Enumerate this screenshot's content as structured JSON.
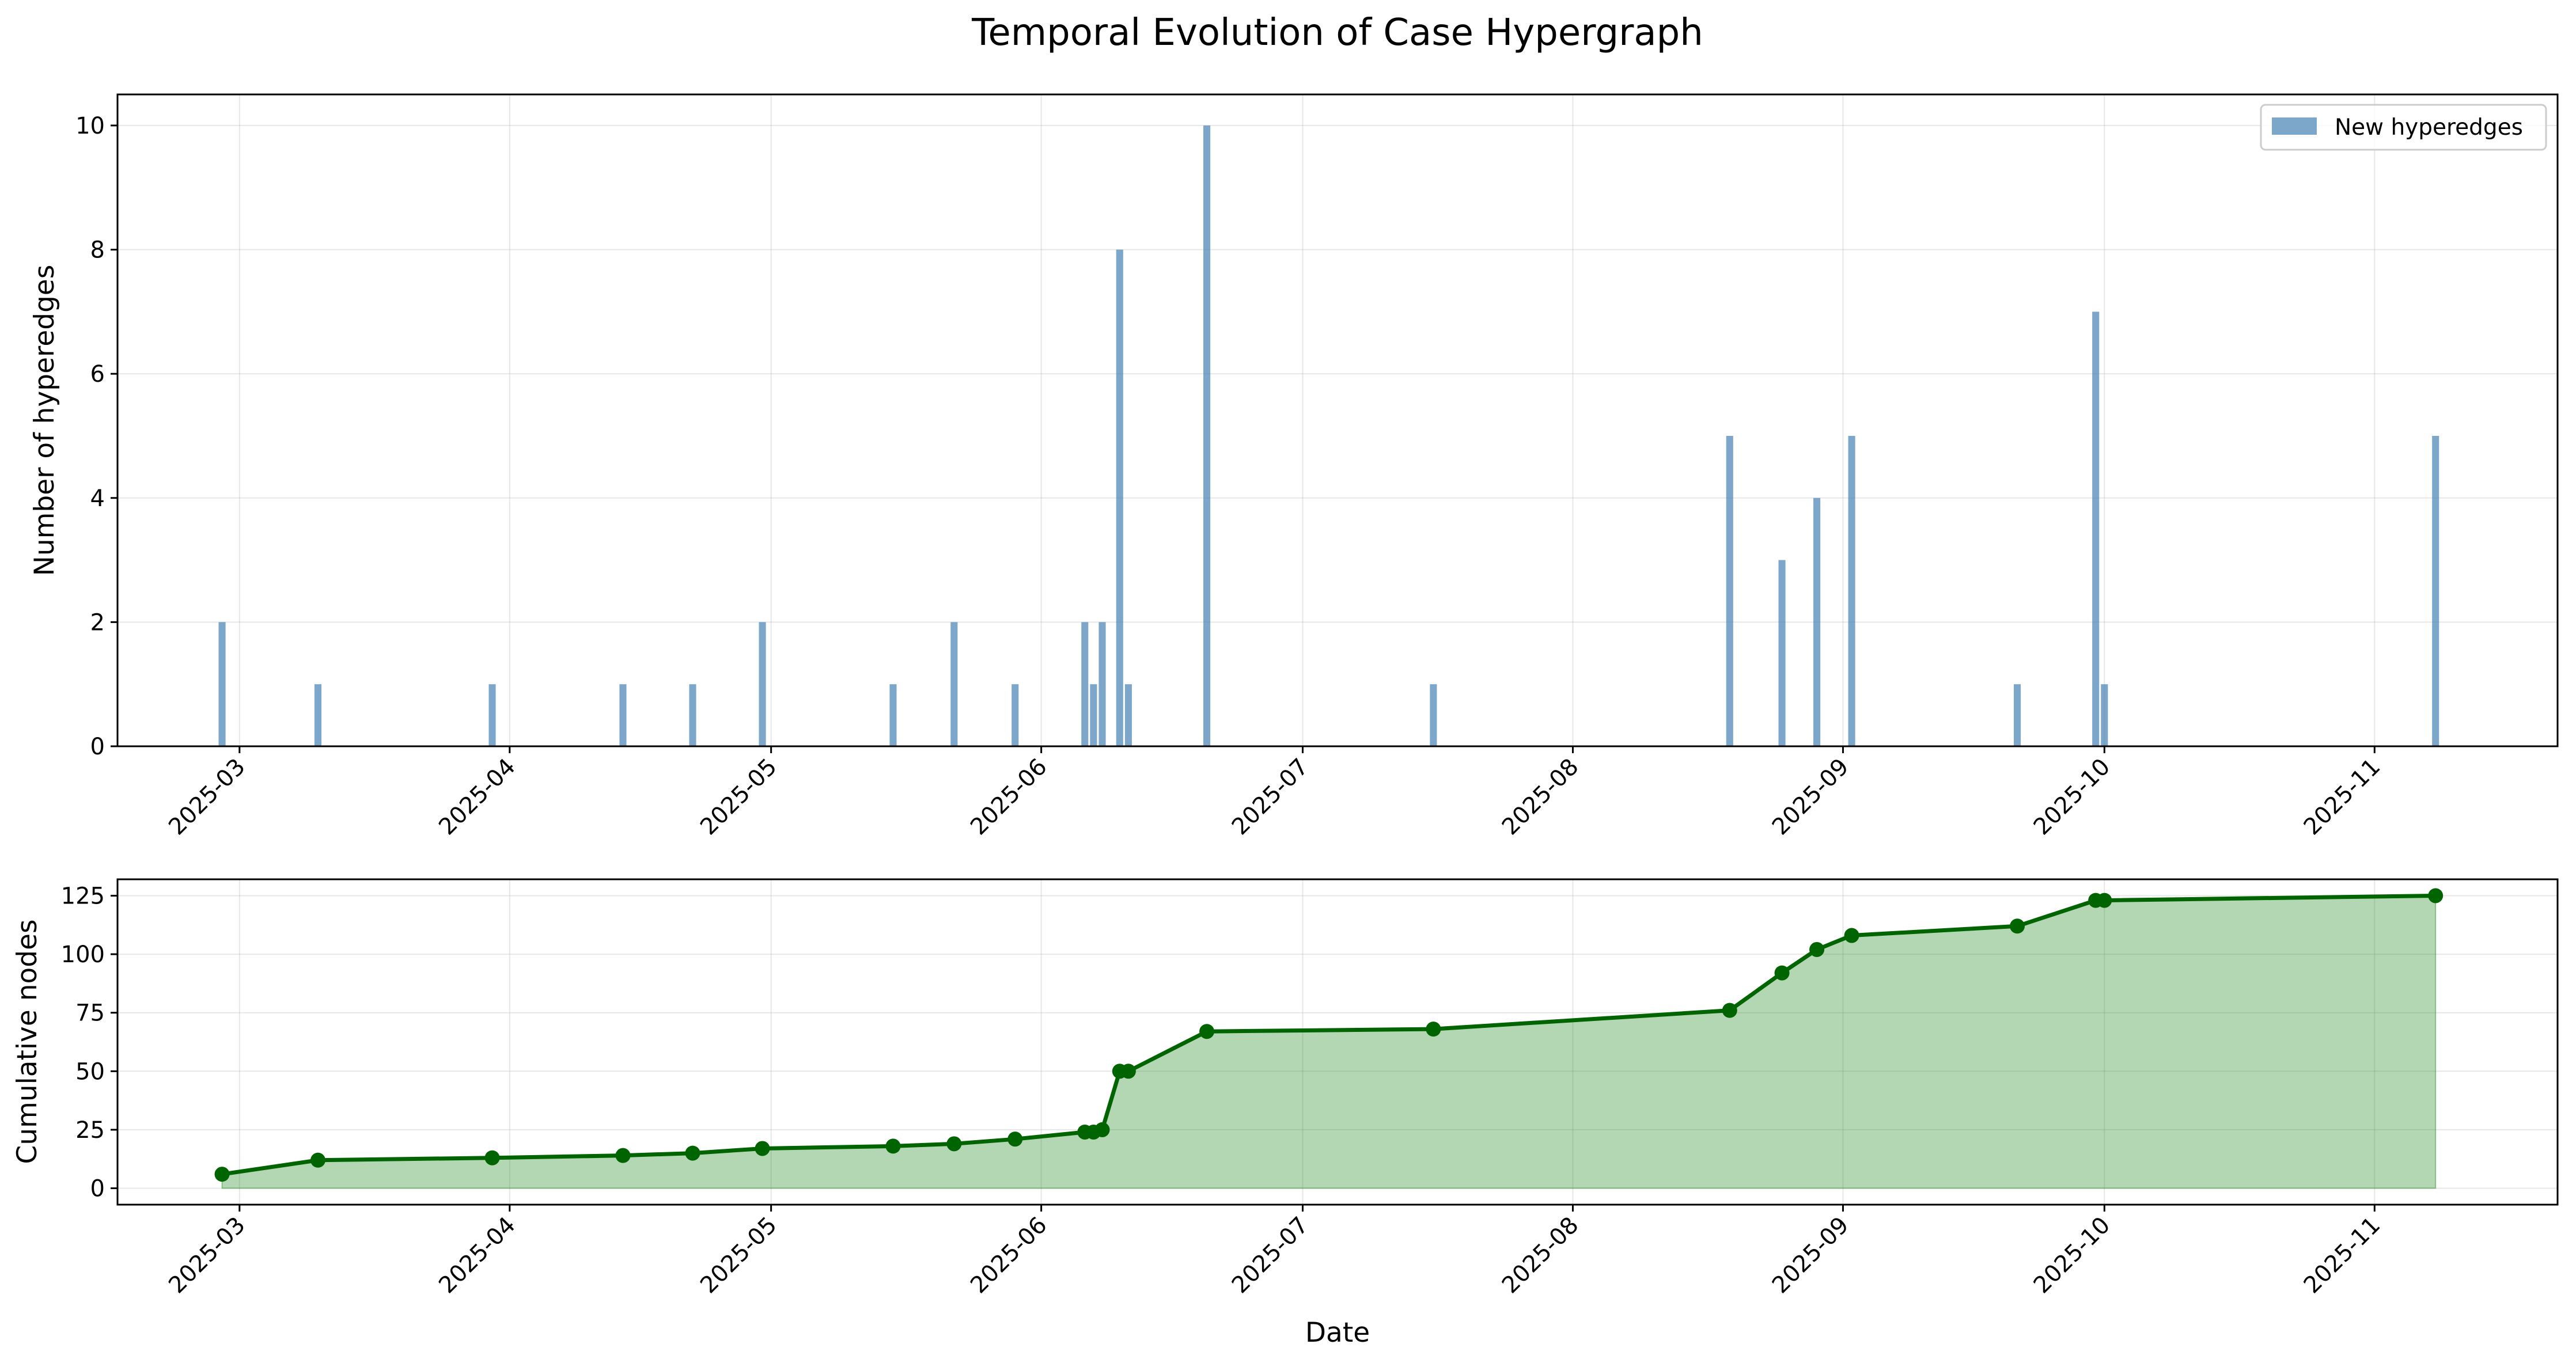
{
  "title": "Temporal Evolution of Case Hypergraph",
  "colors": {
    "bar": "#4682b4",
    "line": "#006400",
    "fill": "#228b22"
  },
  "chart_data": [
    {
      "type": "bar",
      "ylabel": "Number of hyperedges",
      "xlabel": "",
      "ylim": [
        0,
        10.5
      ],
      "yticks": [
        0,
        2,
        4,
        6,
        8,
        10
      ],
      "xlim": [
        "2025-02-15",
        "2025-11-22"
      ],
      "xticks": [
        "2025-03-01",
        "2025-04-01",
        "2025-05-01",
        "2025-06-01",
        "2025-07-01",
        "2025-08-01",
        "2025-09-01",
        "2025-10-01",
        "2025-11-01"
      ],
      "xtick_labels": [
        "2025-03",
        "2025-04",
        "2025-05",
        "2025-06",
        "2025-07",
        "2025-08",
        "2025-09",
        "2025-10",
        "2025-11"
      ],
      "grid": true,
      "legend": {
        "position": "top-right",
        "entries": [
          "New hyperedges"
        ]
      },
      "series": [
        {
          "name": "New hyperedges",
          "x": [
            "2025-02-27",
            "2025-03-10",
            "2025-03-30",
            "2025-04-14",
            "2025-04-22",
            "2025-04-30",
            "2025-05-15",
            "2025-05-22",
            "2025-05-29",
            "2025-06-06",
            "2025-06-07",
            "2025-06-08",
            "2025-06-10",
            "2025-06-11",
            "2025-06-20",
            "2025-07-16",
            "2025-08-19",
            "2025-08-25",
            "2025-08-29",
            "2025-09-02",
            "2025-09-21",
            "2025-09-30",
            "2025-10-01",
            "2025-11-08"
          ],
          "values": [
            2,
            1,
            1,
            1,
            1,
            2,
            1,
            2,
            1,
            2,
            1,
            2,
            8,
            1,
            10,
            1,
            5,
            3,
            4,
            5,
            1,
            7,
            1,
            5
          ]
        }
      ]
    },
    {
      "type": "area",
      "ylabel": "Cumulative nodes",
      "xlabel": "Date",
      "ylim": [
        -7,
        132
      ],
      "yticks": [
        0,
        25,
        50,
        75,
        100,
        125
      ],
      "xlim": [
        "2025-02-15",
        "2025-11-22"
      ],
      "xticks": [
        "2025-03-01",
        "2025-04-01",
        "2025-05-01",
        "2025-06-01",
        "2025-07-01",
        "2025-08-01",
        "2025-09-01",
        "2025-10-01",
        "2025-11-01"
      ],
      "xtick_labels": [
        "2025-03",
        "2025-04",
        "2025-05",
        "2025-06",
        "2025-07",
        "2025-08",
        "2025-09",
        "2025-10",
        "2025-11"
      ],
      "grid": true,
      "series": [
        {
          "x": [
            "2025-02-27",
            "2025-03-10",
            "2025-03-30",
            "2025-04-14",
            "2025-04-22",
            "2025-04-30",
            "2025-05-15",
            "2025-05-22",
            "2025-05-29",
            "2025-06-06",
            "2025-06-07",
            "2025-06-08",
            "2025-06-10",
            "2025-06-11",
            "2025-06-20",
            "2025-07-16",
            "2025-08-19",
            "2025-08-25",
            "2025-08-29",
            "2025-09-02",
            "2025-09-21",
            "2025-09-30",
            "2025-10-01",
            "2025-11-08"
          ],
          "values": [
            6,
            12,
            13,
            14,
            15,
            17,
            18,
            19,
            21,
            24,
            24,
            25,
            50,
            50,
            67,
            68,
            76,
            92,
            102,
            108,
            112,
            123,
            123,
            125
          ]
        }
      ]
    }
  ]
}
